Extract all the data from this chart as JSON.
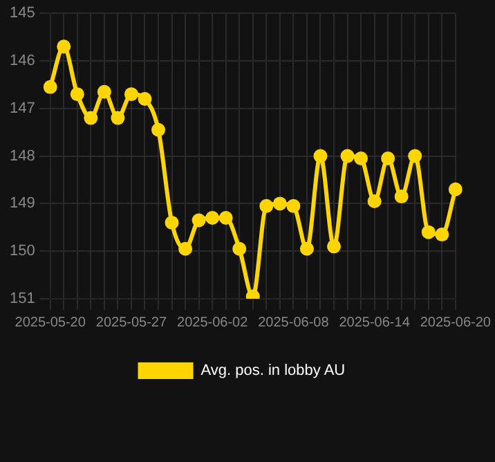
{
  "chart_data": {
    "type": "line",
    "categories": [
      "2025-05-20",
      null,
      null,
      null,
      null,
      null,
      "2025-05-27",
      null,
      null,
      null,
      null,
      null,
      "2025-06-02",
      null,
      null,
      null,
      null,
      null,
      "2025-06-08",
      null,
      null,
      null,
      null,
      null,
      "2025-06-14",
      null,
      null,
      null,
      null,
      null,
      "2025-06-20"
    ],
    "series": [
      {
        "name": "Avg. pos. in lobby AU",
        "color": "#ffd500",
        "values": [
          146.55,
          145.7,
          146.7,
          147.2,
          146.65,
          147.2,
          146.7,
          146.8,
          147.45,
          149.4,
          149.95,
          149.35,
          149.3,
          149.3,
          149.95,
          150.95,
          149.05,
          149.0,
          149.05,
          149.95,
          148.0,
          149.9,
          148.0,
          148.05,
          148.95,
          148.05,
          148.85,
          148.0,
          149.6,
          149.65,
          148.7
        ]
      }
    ],
    "ylim": [
      151,
      145
    ],
    "yticks": [
      145,
      146,
      147,
      148,
      149,
      150,
      151
    ],
    "grid": true,
    "legend": "bottom",
    "marker": "circle",
    "line_style": "solid"
  }
}
